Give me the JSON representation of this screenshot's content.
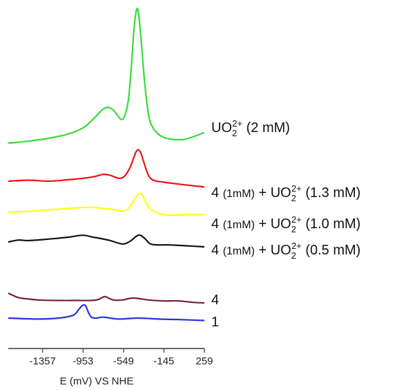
{
  "chart_data": {
    "type": "line",
    "xlabel": "E (mV) VS NHE",
    "ylabel": "",
    "xlim": [
      -1700,
      259
    ],
    "x_ticks": [
      -1357,
      -953,
      -549,
      -145,
      259
    ],
    "x_tick_labels": [
      "-1357",
      "-953",
      "-549",
      "-145",
      "259"
    ],
    "grid": false,
    "series": [
      {
        "label_parts": [
          {
            "t": "UO",
            "s": "n"
          },
          {
            "t": "2",
            "s": "sub"
          },
          {
            "t": "2+",
            "s": "sup"
          },
          {
            "t": " (2 mM)",
            "s": "n"
          }
        ],
        "color": "#33dd33",
        "x": [
          -1700,
          -1500,
          -1300,
          -1100,
          -950,
          -850,
          -760,
          -700,
          -640,
          -580,
          -540,
          -500,
          -470,
          -440,
          -410,
          -380,
          -340,
          -300,
          -250,
          -150,
          0,
          100,
          259
        ],
        "y": [
          0.0,
          0.04,
          0.1,
          0.19,
          0.32,
          0.5,
          0.69,
          0.74,
          0.66,
          0.5,
          0.55,
          0.9,
          1.6,
          2.45,
          2.78,
          2.3,
          1.3,
          0.6,
          0.3,
          0.12,
          0.07,
          0.1,
          0.22
        ]
      },
      {
        "label_parts": [
          {
            "t": "4 ",
            "s": "n"
          },
          {
            "t": "(1mM)",
            "s": "small"
          },
          {
            "t": " + UO",
            "s": "n"
          },
          {
            "t": "2",
            "s": "sub"
          },
          {
            "t": "2+",
            "s": "sup"
          },
          {
            "t": " (1.3 mM)",
            "s": "n"
          }
        ],
        "color": "#ee1111",
        "x": [
          -1700,
          -1500,
          -1300,
          -1100,
          -950,
          -850,
          -750,
          -680,
          -600,
          -540,
          -480,
          -420,
          -380,
          -340,
          -300,
          -250,
          -150,
          0,
          259
        ],
        "y": [
          0.0,
          0.02,
          0.0,
          0.03,
          0.06,
          0.09,
          0.14,
          0.12,
          0.06,
          0.1,
          0.3,
          0.62,
          0.6,
          0.35,
          0.12,
          0.02,
          -0.02,
          -0.06,
          -0.12
        ]
      },
      {
        "label_parts": [
          {
            "t": "4 ",
            "s": "n"
          },
          {
            "t": "(1mM)",
            "s": "small"
          },
          {
            "t": " + UO",
            "s": "n"
          },
          {
            "t": "2",
            "s": "sub"
          },
          {
            "t": "2+",
            "s": "sup"
          },
          {
            "t": " (1.0 mM)",
            "s": "n"
          }
        ],
        "color": "#ffff11",
        "x": [
          -1700,
          -1500,
          -1300,
          -1100,
          -950,
          -850,
          -750,
          -650,
          -560,
          -500,
          -460,
          -410,
          -370,
          -330,
          -280,
          -200,
          -100,
          100,
          259
        ],
        "y": [
          0.0,
          0.02,
          0.05,
          0.08,
          0.1,
          0.1,
          0.08,
          0.06,
          0.02,
          0.08,
          0.2,
          0.36,
          0.38,
          0.22,
          0.06,
          -0.02,
          -0.06,
          -0.05,
          -0.05
        ]
      },
      {
        "label_parts": [
          {
            "t": "4 ",
            "s": "n"
          },
          {
            "t": "(1mM)",
            "s": "small"
          },
          {
            "t": " + UO",
            "s": "n"
          },
          {
            "t": "2",
            "s": "sub"
          },
          {
            "t": "2+",
            "s": "sup"
          },
          {
            "t": " (0.5 mM)",
            "s": "n"
          }
        ],
        "color": "#111111",
        "x": [
          -1700,
          -1600,
          -1500,
          -1300,
          -1100,
          -960,
          -850,
          -700,
          -560,
          -480,
          -420,
          -380,
          -330,
          -280,
          -200,
          -100,
          100,
          259
        ],
        "y": [
          0.0,
          0.04,
          0.03,
          0.06,
          0.1,
          0.14,
          0.1,
          0.04,
          -0.04,
          0.02,
          0.12,
          0.14,
          0.06,
          -0.04,
          -0.06,
          -0.06,
          -0.08,
          -0.1
        ]
      },
      {
        "label_parts": [
          {
            "t": "4",
            "s": "n"
          }
        ],
        "color": "#7a1a3a",
        "x": [
          -1700,
          -1600,
          -1500,
          -1400,
          -1200,
          -1000,
          -860,
          -800,
          -740,
          -700,
          -650,
          -560,
          -450,
          -300,
          -150,
          0,
          150,
          259
        ],
        "y": [
          0.0,
          -0.09,
          -0.12,
          -0.14,
          -0.15,
          -0.15,
          -0.15,
          -0.13,
          -0.07,
          -0.1,
          -0.14,
          -0.14,
          -0.1,
          -0.14,
          -0.16,
          -0.16,
          -0.19,
          -0.2
        ]
      },
      {
        "label_parts": [
          {
            "t": "1",
            "s": "n"
          }
        ],
        "color": "#2233dd",
        "x": [
          -1700,
          -1400,
          -1200,
          -1050,
          -1000,
          -960,
          -930,
          -900,
          -870,
          -820,
          -750,
          -600,
          -400,
          -200,
          0,
          259
        ],
        "y": [
          0.0,
          -0.02,
          0.0,
          0.06,
          0.17,
          0.26,
          0.26,
          0.12,
          0.02,
          0.0,
          0.02,
          -0.02,
          0.0,
          -0.02,
          -0.03,
          -0.05
        ]
      }
    ]
  }
}
